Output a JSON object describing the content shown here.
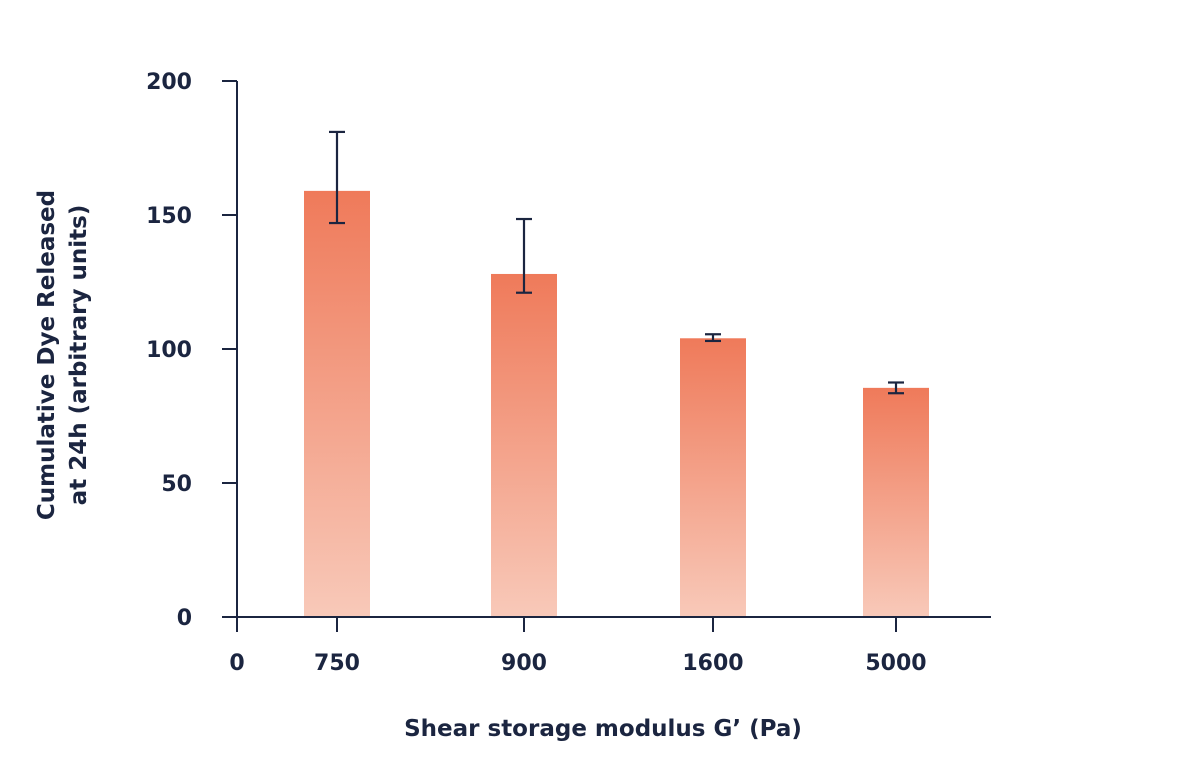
{
  "chart_data": {
    "type": "bar",
    "title": "",
    "xlabel": "Shear storage modulus G’ (Pa)",
    "ylabel_line1": "Cumulative Dye Released",
    "ylabel_line2": "at 24h (arbitrary units)",
    "ylabel": "Cumulative Dye Released at 24h (arbitrary units)",
    "categories": [
      "750",
      "900",
      "1600",
      "5000"
    ],
    "values": [
      159,
      128,
      104,
      85.5
    ],
    "error_upper": [
      181,
      148.5,
      105.5,
      87.5
    ],
    "error_lower": [
      147,
      121,
      103,
      83.5
    ],
    "x_tick_labels": [
      "0",
      "750",
      "900",
      "1600",
      "5000"
    ],
    "y_ticks": [
      0,
      50,
      100,
      150,
      200
    ],
    "ylim": [
      0,
      200
    ],
    "grid": false,
    "legend": null,
    "colors": {
      "bar_top": "#ef7a5a",
      "bar_bottom": "#f8c9b9",
      "axis": "#1b2540",
      "error_bar": "#1b2540"
    }
  }
}
